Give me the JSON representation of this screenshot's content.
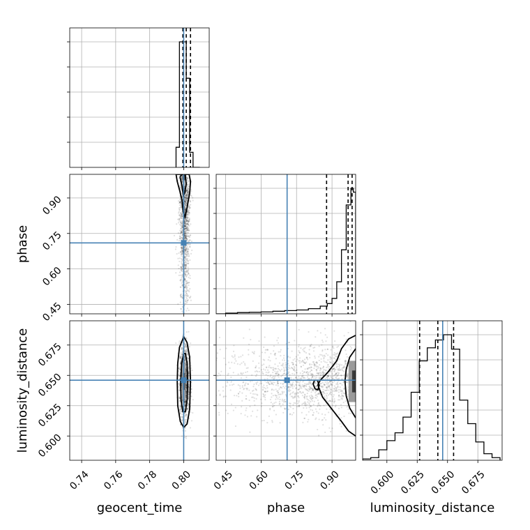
{
  "chart_data": {
    "type": "corner",
    "parameters": [
      "geocent_time",
      "phase",
      "luminosity_distance"
    ],
    "truths": {
      "geocent_time": 0.8,
      "phase": 0.71,
      "luminosity_distance": 0.646
    },
    "colors": {
      "truth": "#4682b4",
      "contour": "#000000",
      "grid": "#b0b0b0",
      "samples": "#000000"
    },
    "grid": true,
    "axes": {
      "geocent_time": {
        "range": [
          0.733,
          0.815
        ],
        "ticks": [
          0.74,
          0.76,
          0.78,
          0.8
        ],
        "tick_labels": [
          "0.74",
          "0.76",
          "0.78",
          "0.80"
        ],
        "label": "geocent_time"
      },
      "phase": {
        "range": [
          0.41,
          1.0
        ],
        "ticks": [
          0.45,
          0.6,
          0.75,
          0.9
        ],
        "tick_labels": [
          "0.45",
          "0.60",
          "0.75",
          "0.90"
        ],
        "label": "phase"
      },
      "luminosity_distance": {
        "range": [
          0.58,
          0.695
        ],
        "ticks": [
          0.6,
          0.625,
          0.65,
          0.675
        ],
        "tick_labels": [
          "0.600",
          "0.625",
          "0.650",
          "0.675"
        ],
        "label": "luminosity_distance"
      }
    },
    "histograms": {
      "geocent_time": {
        "edges": [
          0.7955,
          0.7975,
          0.7995,
          0.8015,
          0.8035,
          0.8055,
          0.8075,
          0.8095
        ],
        "counts": [
          0.16,
          1.0,
          1.0,
          0.71,
          0.12,
          0.0,
          0.0
        ],
        "quantiles": [
          0.7995,
          0.8015,
          0.804
        ]
      },
      "phase": {
        "edges": [
          0.41,
          0.45,
          0.5,
          0.55,
          0.6,
          0.65,
          0.7,
          0.75,
          0.8,
          0.85,
          0.88,
          0.9,
          0.92,
          0.94,
          0.96,
          0.98,
          0.99,
          1.0
        ],
        "counts": [
          0.0,
          0.005,
          0.01,
          0.012,
          0.015,
          0.02,
          0.025,
          0.03,
          0.04,
          0.06,
          0.08,
          0.12,
          0.25,
          0.5,
          0.85,
          0.98,
          0.95
        ],
        "quantiles": [
          0.877,
          0.968,
          0.985
        ]
      },
      "luminosity_distance": {
        "edges": [
          0.58,
          0.5867,
          0.5933,
          0.6,
          0.6067,
          0.6133,
          0.62,
          0.6267,
          0.6333,
          0.64,
          0.6467,
          0.6533,
          0.66,
          0.6667,
          0.6733,
          0.68,
          0.6867,
          0.6933
        ],
        "counts": [
          0.01,
          0.02,
          0.08,
          0.15,
          0.21,
          0.33,
          0.52,
          0.76,
          0.86,
          0.92,
          0.96,
          0.85,
          0.46,
          0.28,
          0.14,
          0.05,
          0.02
        ],
        "quantiles": [
          0.627,
          0.642,
          0.655
        ]
      }
    },
    "contours": {
      "phase_vs_geocent_time": [
        {
          "x": [
            0.7955,
            0.7962,
            0.7977,
            0.799,
            0.7997,
            0.8008,
            0.802,
            0.8035,
            0.804,
            0.8032,
            0.8018,
            0.8005,
            0.798,
            0.7955
          ],
          "y": [
            1.0,
            0.97,
            0.93,
            0.89,
            0.84,
            0.82,
            0.86,
            0.92,
            0.97,
            1.0,
            1.0,
            1.0,
            1.0,
            1.0
          ]
        },
        {
          "x": [
            0.7978,
            0.799,
            0.7998,
            0.8006,
            0.8015,
            0.8008,
            0.8,
            0.799,
            0.7978
          ],
          "y": [
            0.99,
            0.95,
            0.91,
            0.92,
            0.96,
            1.0,
            1.0,
            1.0,
            0.99
          ]
        }
      ],
      "luminosity_distance_vs_geocent_time": [
        {
          "x": [
            0.7995,
            0.7975,
            0.7965,
            0.7962,
            0.7965,
            0.798,
            0.8,
            0.802,
            0.8035,
            0.804,
            0.8035,
            0.802,
            0.8,
            0.7995
          ],
          "y": [
            0.68,
            0.673,
            0.66,
            0.645,
            0.625,
            0.612,
            0.607,
            0.61,
            0.622,
            0.645,
            0.665,
            0.677,
            0.682,
            0.68
          ]
        },
        {
          "x": [
            0.8,
            0.7988,
            0.7982,
            0.7984,
            0.7995,
            0.801,
            0.802,
            0.8024,
            0.802,
            0.801,
            0.8
          ],
          "y": [
            0.668,
            0.66,
            0.645,
            0.63,
            0.62,
            0.62,
            0.63,
            0.645,
            0.66,
            0.668,
            0.668
          ]
        }
      ],
      "luminosity_distance_vs_phase": [
        {
          "x": [
            1.0,
            0.97,
            0.94,
            0.92,
            0.88,
            0.85,
            0.84,
            0.86,
            0.9,
            0.94,
            0.97,
            1.0
          ],
          "y": [
            0.683,
            0.68,
            0.672,
            0.662,
            0.652,
            0.646,
            0.642,
            0.632,
            0.622,
            0.612,
            0.604,
            0.6
          ]
        },
        {
          "x": [
            1.0,
            0.975,
            0.96,
            0.955,
            0.96,
            0.975,
            1.0
          ],
          "y": [
            0.672,
            0.665,
            0.655,
            0.645,
            0.633,
            0.623,
            0.615
          ]
        },
        {
          "x": [
            0.82,
            0.826,
            0.838,
            0.846,
            0.84,
            0.828,
            0.82
          ],
          "y": [
            0.643,
            0.646,
            0.646,
            0.642,
            0.638,
            0.639,
            0.643
          ]
        }
      ]
    },
    "density_cells": {
      "phase_vs_geocent_time": [
        {
          "x": [
            0.7995,
            0.8005
          ],
          "y": [
            0.975,
            1.0
          ],
          "shade": "#2a2a2a"
        },
        {
          "x": [
            0.8005,
            0.8015
          ],
          "y": [
            0.975,
            1.0
          ],
          "shade": "#5a5a5a"
        },
        {
          "x": [
            0.7985,
            0.7995
          ],
          "y": [
            0.975,
            1.0
          ],
          "shade": "#8c8c8c"
        },
        {
          "x": [
            0.7995,
            0.8015
          ],
          "y": [
            0.95,
            0.975
          ],
          "shade": "#c8c8c8"
        }
      ],
      "luminosity_distance_vs_geocent_time": [
        {
          "x": [
            0.7995,
            0.8008
          ],
          "y": [
            0.638,
            0.652
          ],
          "shade": "#4a4a4a"
        },
        {
          "x": [
            0.799,
            0.8012
          ],
          "y": [
            0.63,
            0.66
          ],
          "shade": "#a0a0a0"
        }
      ],
      "luminosity_distance_vs_phase": [
        {
          "x": [
            0.985,
            1.0
          ],
          "y": [
            0.636,
            0.654
          ],
          "shade": "#3a3a3a"
        },
        {
          "x": [
            0.97,
            1.0
          ],
          "y": [
            0.628,
            0.662
          ],
          "shade": "#9a9a9a"
        }
      ]
    },
    "samples": {
      "phase_vs_geocent_time": {
        "x_center": 0.8005,
        "x_sd": 0.0015,
        "y_mode": 0.99,
        "y_min": 0.41,
        "n": 1400
      },
      "luminosity_distance_vs_geocent_time": {
        "x_center": 0.8005,
        "x_sd": 0.0015,
        "y_center": 0.645,
        "y_sd": 0.015,
        "n": 1400
      },
      "luminosity_distance_vs_phase": {
        "x_mode": 0.99,
        "x_min": 0.41,
        "y_center": 0.645,
        "y_sd": 0.015,
        "n": 1400
      }
    }
  }
}
